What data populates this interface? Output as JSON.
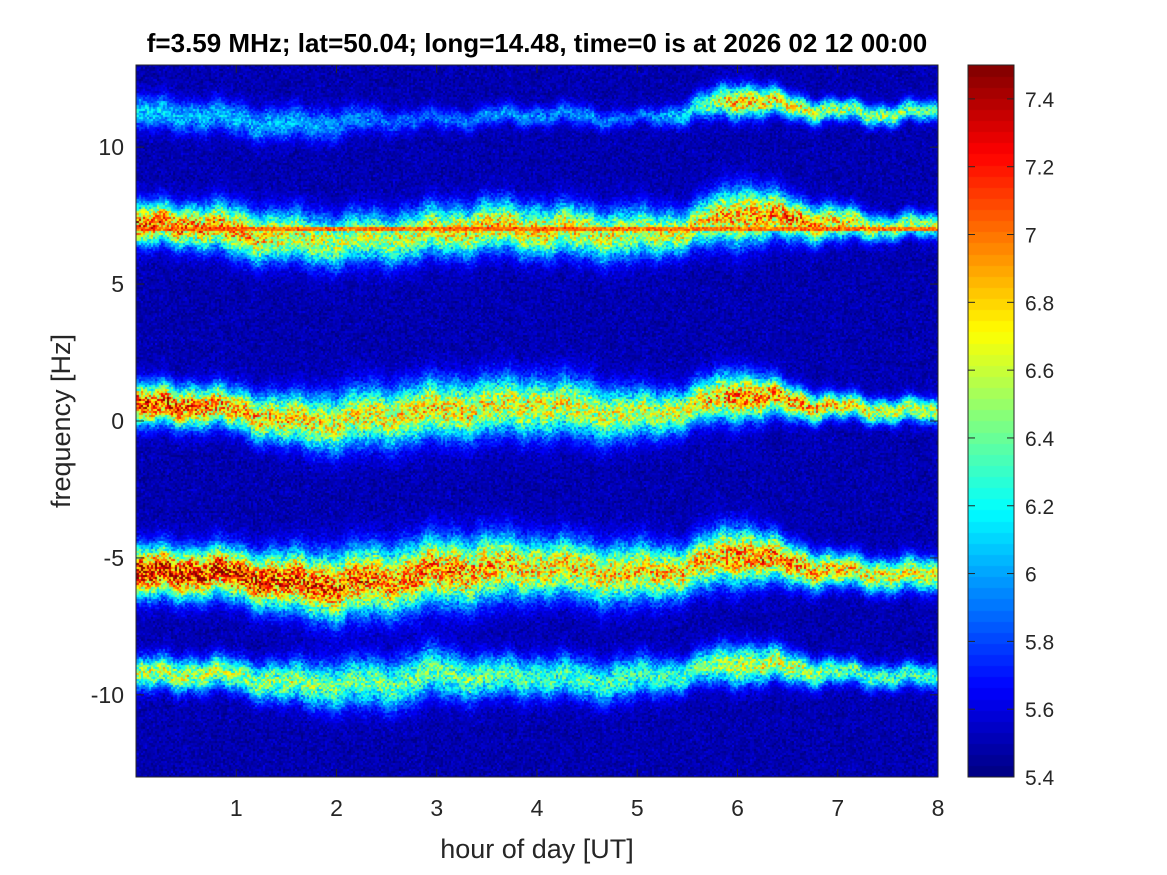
{
  "chart_data": {
    "type": "heatmap",
    "title": "f=3.59 MHz;  lat=50.04; long=14.48, time=0 is at 2026 02 12 00:00",
    "xlabel": "hour of day [UT]",
    "ylabel": "frequency [Hz]",
    "xlim": [
      0,
      8
    ],
    "ylim": [
      -13,
      13
    ],
    "x_ticks": [
      1,
      2,
      3,
      4,
      5,
      6,
      7,
      8
    ],
    "x_tick_labels": [
      "1",
      "2",
      "3",
      "4",
      "5",
      "6",
      "7",
      "8"
    ],
    "y_ticks": [
      -10,
      -5,
      0,
      5,
      10
    ],
    "y_tick_labels": [
      "-10",
      "-5",
      "0",
      "5",
      "10"
    ],
    "colorbar": {
      "colormap": "jet",
      "clim": [
        5.4,
        7.5
      ],
      "ticks": [
        5.4,
        5.6,
        5.8,
        6.0,
        6.2,
        6.4,
        6.6,
        6.8,
        7.0,
        7.2,
        7.4
      ],
      "tick_labels": [
        "5.4",
        "5.6",
        "5.8",
        "6",
        "6.2",
        "6.4",
        "6.6",
        "6.8",
        "7",
        "7.2",
        "7.4"
      ]
    },
    "background_level": 5.5,
    "bands": [
      {
        "name": "band +11 Hz",
        "x": [
          0,
          0.5,
          1,
          1.5,
          2,
          2.5,
          3,
          3.5,
          4,
          4.5,
          5,
          5.5,
          6,
          6.5,
          7,
          7.5,
          8
        ],
        "y": [
          11.2,
          11.2,
          11.0,
          10.8,
          10.9,
          11.0,
          11.0,
          11.1,
          11.2,
          11.1,
          11.0,
          11.3,
          11.8,
          11.5,
          11.3,
          11.2,
          11.3
        ],
        "width": [
          0.4,
          0.4,
          0.4,
          0.4,
          0.4,
          0.3,
          0.25,
          0.25,
          0.25,
          0.25,
          0.2,
          0.3,
          0.4,
          0.3,
          0.25,
          0.25,
          0.25
        ],
        "peak": [
          6.2,
          6.1,
          6.1,
          6.1,
          6.0,
          5.9,
          5.9,
          6.0,
          6.0,
          6.0,
          5.9,
          6.2,
          7.0,
          6.8,
          6.6,
          6.6,
          6.4
        ]
      },
      {
        "name": "band +7 Hz",
        "x": [
          0,
          0.5,
          1,
          1.5,
          2,
          2.5,
          3,
          3.5,
          4,
          4.5,
          5,
          5.5,
          6,
          6.5,
          7,
          7.5,
          8
        ],
        "y": [
          7.1,
          7.2,
          6.9,
          6.7,
          6.6,
          6.7,
          6.9,
          7.1,
          7.0,
          6.9,
          6.8,
          7.0,
          7.6,
          7.4,
          7.2,
          7.1,
          7.1
        ],
        "width": [
          0.5,
          0.5,
          0.6,
          0.6,
          0.6,
          0.6,
          0.6,
          0.6,
          0.6,
          0.6,
          0.6,
          0.5,
          0.7,
          0.5,
          0.4,
          0.3,
          0.3
        ],
        "peak": [
          7.2,
          7.1,
          7.0,
          6.8,
          6.7,
          6.7,
          6.8,
          6.9,
          6.9,
          6.8,
          6.7,
          6.8,
          7.0,
          7.1,
          6.9,
          6.6,
          6.6
        ]
      },
      {
        "name": "band 0 Hz",
        "x": [
          0,
          0.5,
          1,
          1.5,
          2,
          2.5,
          3,
          3.5,
          4,
          4.5,
          5,
          5.5,
          6,
          6.5,
          7,
          7.5,
          8
        ],
        "y": [
          0.5,
          0.6,
          0.4,
          0.0,
          0.0,
          0.2,
          0.4,
          0.5,
          0.6,
          0.4,
          0.2,
          0.5,
          1.0,
          0.7,
          0.5,
          0.4,
          0.3
        ],
        "width": [
          0.5,
          0.5,
          0.5,
          0.6,
          0.7,
          0.7,
          0.7,
          0.7,
          0.7,
          0.7,
          0.6,
          0.5,
          0.6,
          0.4,
          0.3,
          0.3,
          0.3
        ],
        "peak": [
          7.3,
          7.2,
          7.0,
          6.9,
          6.8,
          6.8,
          6.9,
          6.8,
          6.8,
          6.7,
          6.7,
          6.8,
          7.1,
          7.1,
          6.9,
          6.7,
          6.7
        ]
      },
      {
        "name": "band -5.5 Hz",
        "x": [
          0,
          0.5,
          1,
          1.5,
          2,
          2.5,
          3,
          3.5,
          4,
          4.5,
          5,
          5.5,
          6,
          6.5,
          7,
          7.5,
          8
        ],
        "y": [
          -5.6,
          -5.5,
          -5.6,
          -5.9,
          -6.0,
          -5.8,
          -5.5,
          -5.4,
          -5.3,
          -5.5,
          -5.6,
          -5.4,
          -4.8,
          -5.2,
          -5.5,
          -5.6,
          -5.7
        ],
        "width": [
          0.6,
          0.6,
          0.6,
          0.7,
          0.8,
          0.8,
          0.8,
          0.8,
          0.7,
          0.7,
          0.7,
          0.6,
          0.7,
          0.5,
          0.4,
          0.4,
          0.4
        ],
        "peak": [
          7.5,
          7.4,
          7.4,
          7.3,
          7.2,
          7.1,
          7.1,
          7.0,
          6.9,
          6.9,
          6.9,
          6.9,
          7.1,
          7.1,
          6.9,
          6.8,
          6.8
        ]
      },
      {
        "name": "band -9.5 Hz",
        "x": [
          0,
          0.5,
          1,
          1.5,
          2,
          2.5,
          3,
          3.5,
          4,
          4.5,
          5,
          5.5,
          6,
          6.5,
          7,
          7.5,
          8
        ],
        "y": [
          -9.3,
          -9.2,
          -9.3,
          -9.6,
          -9.6,
          -9.6,
          -9.2,
          -9.4,
          -9.3,
          -9.5,
          -9.4,
          -9.2,
          -8.8,
          -9.0,
          -9.2,
          -9.3,
          -9.4
        ],
        "width": [
          0.4,
          0.4,
          0.4,
          0.5,
          0.6,
          0.6,
          0.6,
          0.5,
          0.5,
          0.5,
          0.5,
          0.4,
          0.5,
          0.4,
          0.3,
          0.3,
          0.3
        ],
        "peak": [
          6.7,
          6.7,
          6.6,
          6.6,
          6.5,
          6.5,
          6.5,
          6.5,
          6.4,
          6.4,
          6.4,
          6.4,
          6.7,
          6.7,
          6.5,
          6.4,
          6.4
        ]
      }
    ],
    "narrow_line": {
      "y": 7.0,
      "x_start": 0,
      "x_end": 8,
      "value": 7.0
    },
    "annotations": []
  }
}
